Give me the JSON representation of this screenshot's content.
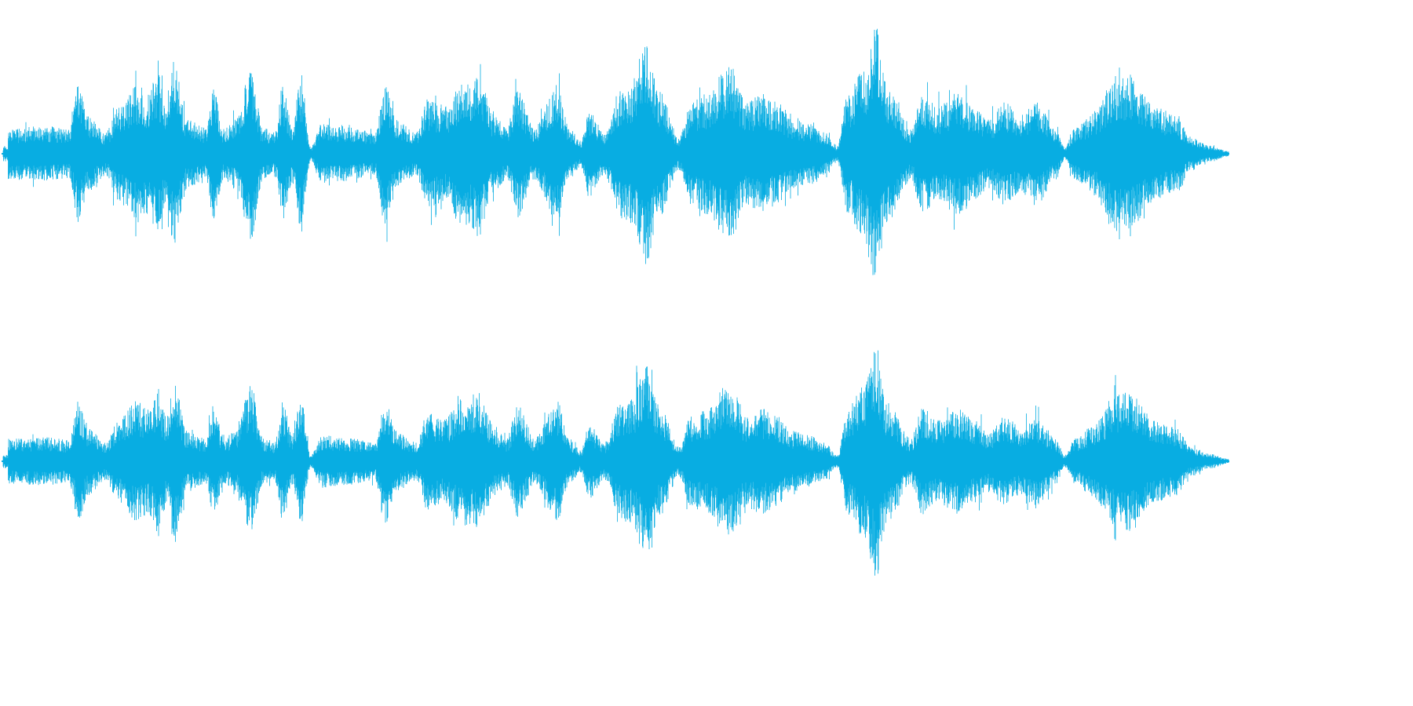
{
  "waveform": {
    "color": "#08ade2",
    "background": "#ffffff",
    "channels": [
      {
        "name": ""
      },
      {
        "name": ""
      }
    ]
  }
}
